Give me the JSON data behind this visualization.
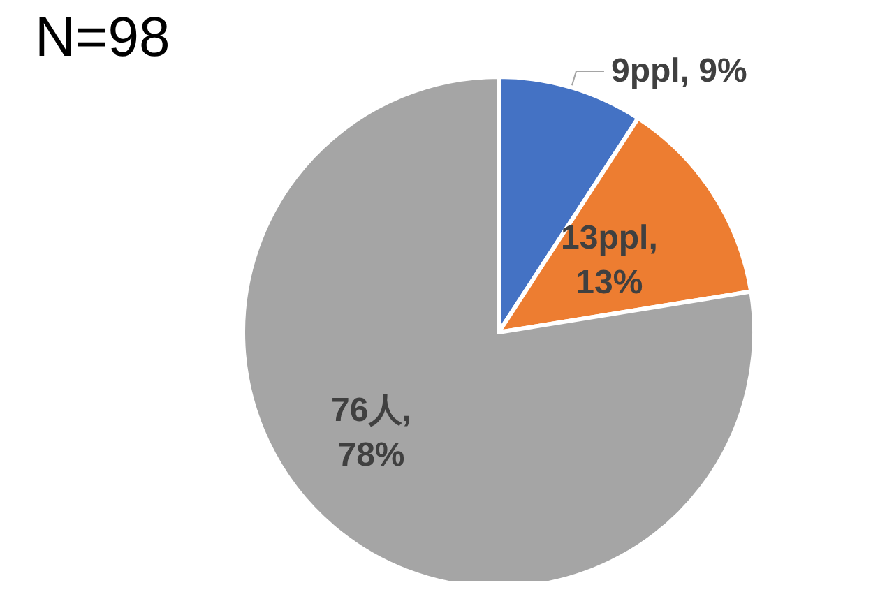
{
  "chart_data": {
    "type": "pie",
    "title": "N=98",
    "categories": [
      null,
      null,
      null
    ],
    "values": [
      9,
      13,
      76
    ],
    "colors": [
      "#4472c4",
      "#ed7d31",
      "#a5a5a5"
    ],
    "value_labels": [
      "9ppl, 9%",
      "13ppl,\n13%",
      "76人,\n78%"
    ]
  }
}
